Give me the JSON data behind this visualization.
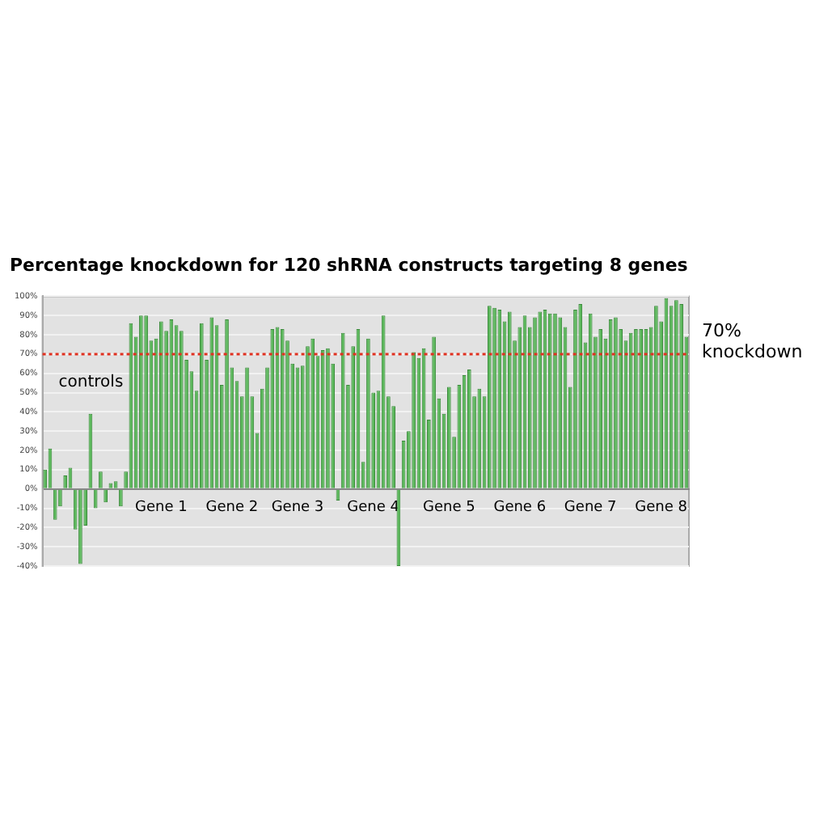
{
  "chart_data": {
    "type": "bar",
    "title": "Percentage knockdown for 120 shRNA constructs targeting 8 genes",
    "categories": [
      null,
      null,
      null,
      null,
      null,
      null,
      null,
      null,
      null,
      null,
      null,
      null,
      null,
      null,
      null,
      null,
      null,
      null,
      null,
      null,
      null,
      null,
      null,
      "Gene 1",
      null,
      null,
      null,
      null,
      null,
      null,
      null,
      null,
      null,
      null,
      null,
      null,
      null,
      "Gene 2",
      null,
      null,
      null,
      null,
      null,
      null,
      null,
      null,
      null,
      null,
      null,
      null,
      "Gene 3",
      null,
      null,
      null,
      null,
      null,
      null,
      null,
      null,
      null,
      null,
      null,
      null,
      null,
      null,
      "Gene 4",
      null,
      null,
      null,
      null,
      null,
      null,
      null,
      null,
      null,
      null,
      null,
      null,
      null,
      null,
      "Gene 5",
      null,
      null,
      null,
      null,
      null,
      null,
      null,
      null,
      null,
      null,
      null,
      null,
      null,
      "Gene 6",
      null,
      null,
      null,
      null,
      null,
      null,
      null,
      null,
      null,
      null,
      null,
      null,
      null,
      "Gene 7",
      null,
      null,
      null,
      null,
      null,
      null,
      null,
      null,
      null,
      null,
      null,
      null,
      null,
      "Gene 8",
      null,
      null,
      null,
      null,
      null
    ],
    "values": [
      10,
      21,
      -16,
      -9,
      7,
      11,
      -21,
      -39,
      -19,
      39,
      -10,
      9,
      -7,
      3,
      4,
      -9,
      9,
      86,
      79,
      90,
      90,
      77,
      78,
      87,
      82,
      88,
      85,
      82,
      67,
      61,
      51,
      86,
      67,
      89,
      85,
      54,
      88,
      63,
      56,
      48,
      63,
      48,
      29,
      52,
      63,
      83,
      84,
      83,
      77,
      65,
      63,
      64,
      74,
      78,
      69,
      72,
      73,
      65,
      -6,
      81,
      54,
      74,
      83,
      14,
      78,
      50,
      51,
      90,
      48,
      43,
      -40,
      25,
      30,
      71,
      68,
      73,
      36,
      79,
      47,
      39,
      53,
      27,
      54,
      59,
      62,
      48,
      52,
      48,
      95,
      94,
      93,
      87,
      92,
      77,
      84,
      90,
      84,
      89,
      92,
      93,
      91,
      91,
      89,
      84,
      53,
      93,
      96,
      76,
      91,
      79,
      83,
      78,
      88,
      89,
      83,
      77,
      81,
      83,
      83,
      83,
      84,
      95,
      87,
      99,
      95,
      98,
      96,
      79
    ],
    "color": "#5cb85c",
    "ylim": [
      -40,
      100
    ],
    "yticks": [
      {
        "value": -40,
        "label": "-40%"
      },
      {
        "value": -30,
        "label": "-30%"
      },
      {
        "value": -20,
        "label": "-20%"
      },
      {
        "value": -10,
        "label": "-10%"
      },
      {
        "value": 0,
        "label": "0%"
      },
      {
        "value": 10,
        "label": "10%"
      },
      {
        "value": 20,
        "label": "20%"
      },
      {
        "value": 30,
        "label": "30%"
      },
      {
        "value": 40,
        "label": "40%"
      },
      {
        "value": 50,
        "label": "50%"
      },
      {
        "value": 60,
        "label": "60%"
      },
      {
        "value": 70,
        "label": "70%"
      },
      {
        "value": 80,
        "label": "80%"
      },
      {
        "value": 90,
        "label": "90%"
      },
      {
        "value": 100,
        "label": "100%"
      }
    ],
    "grid": "y",
    "legend": false,
    "ref_lines": [
      {
        "axis": "y",
        "value": 70,
        "label": "70% knockdown",
        "color": "#e03020",
        "line_style": "dotted"
      }
    ],
    "annotations": [
      "controls"
    ]
  }
}
